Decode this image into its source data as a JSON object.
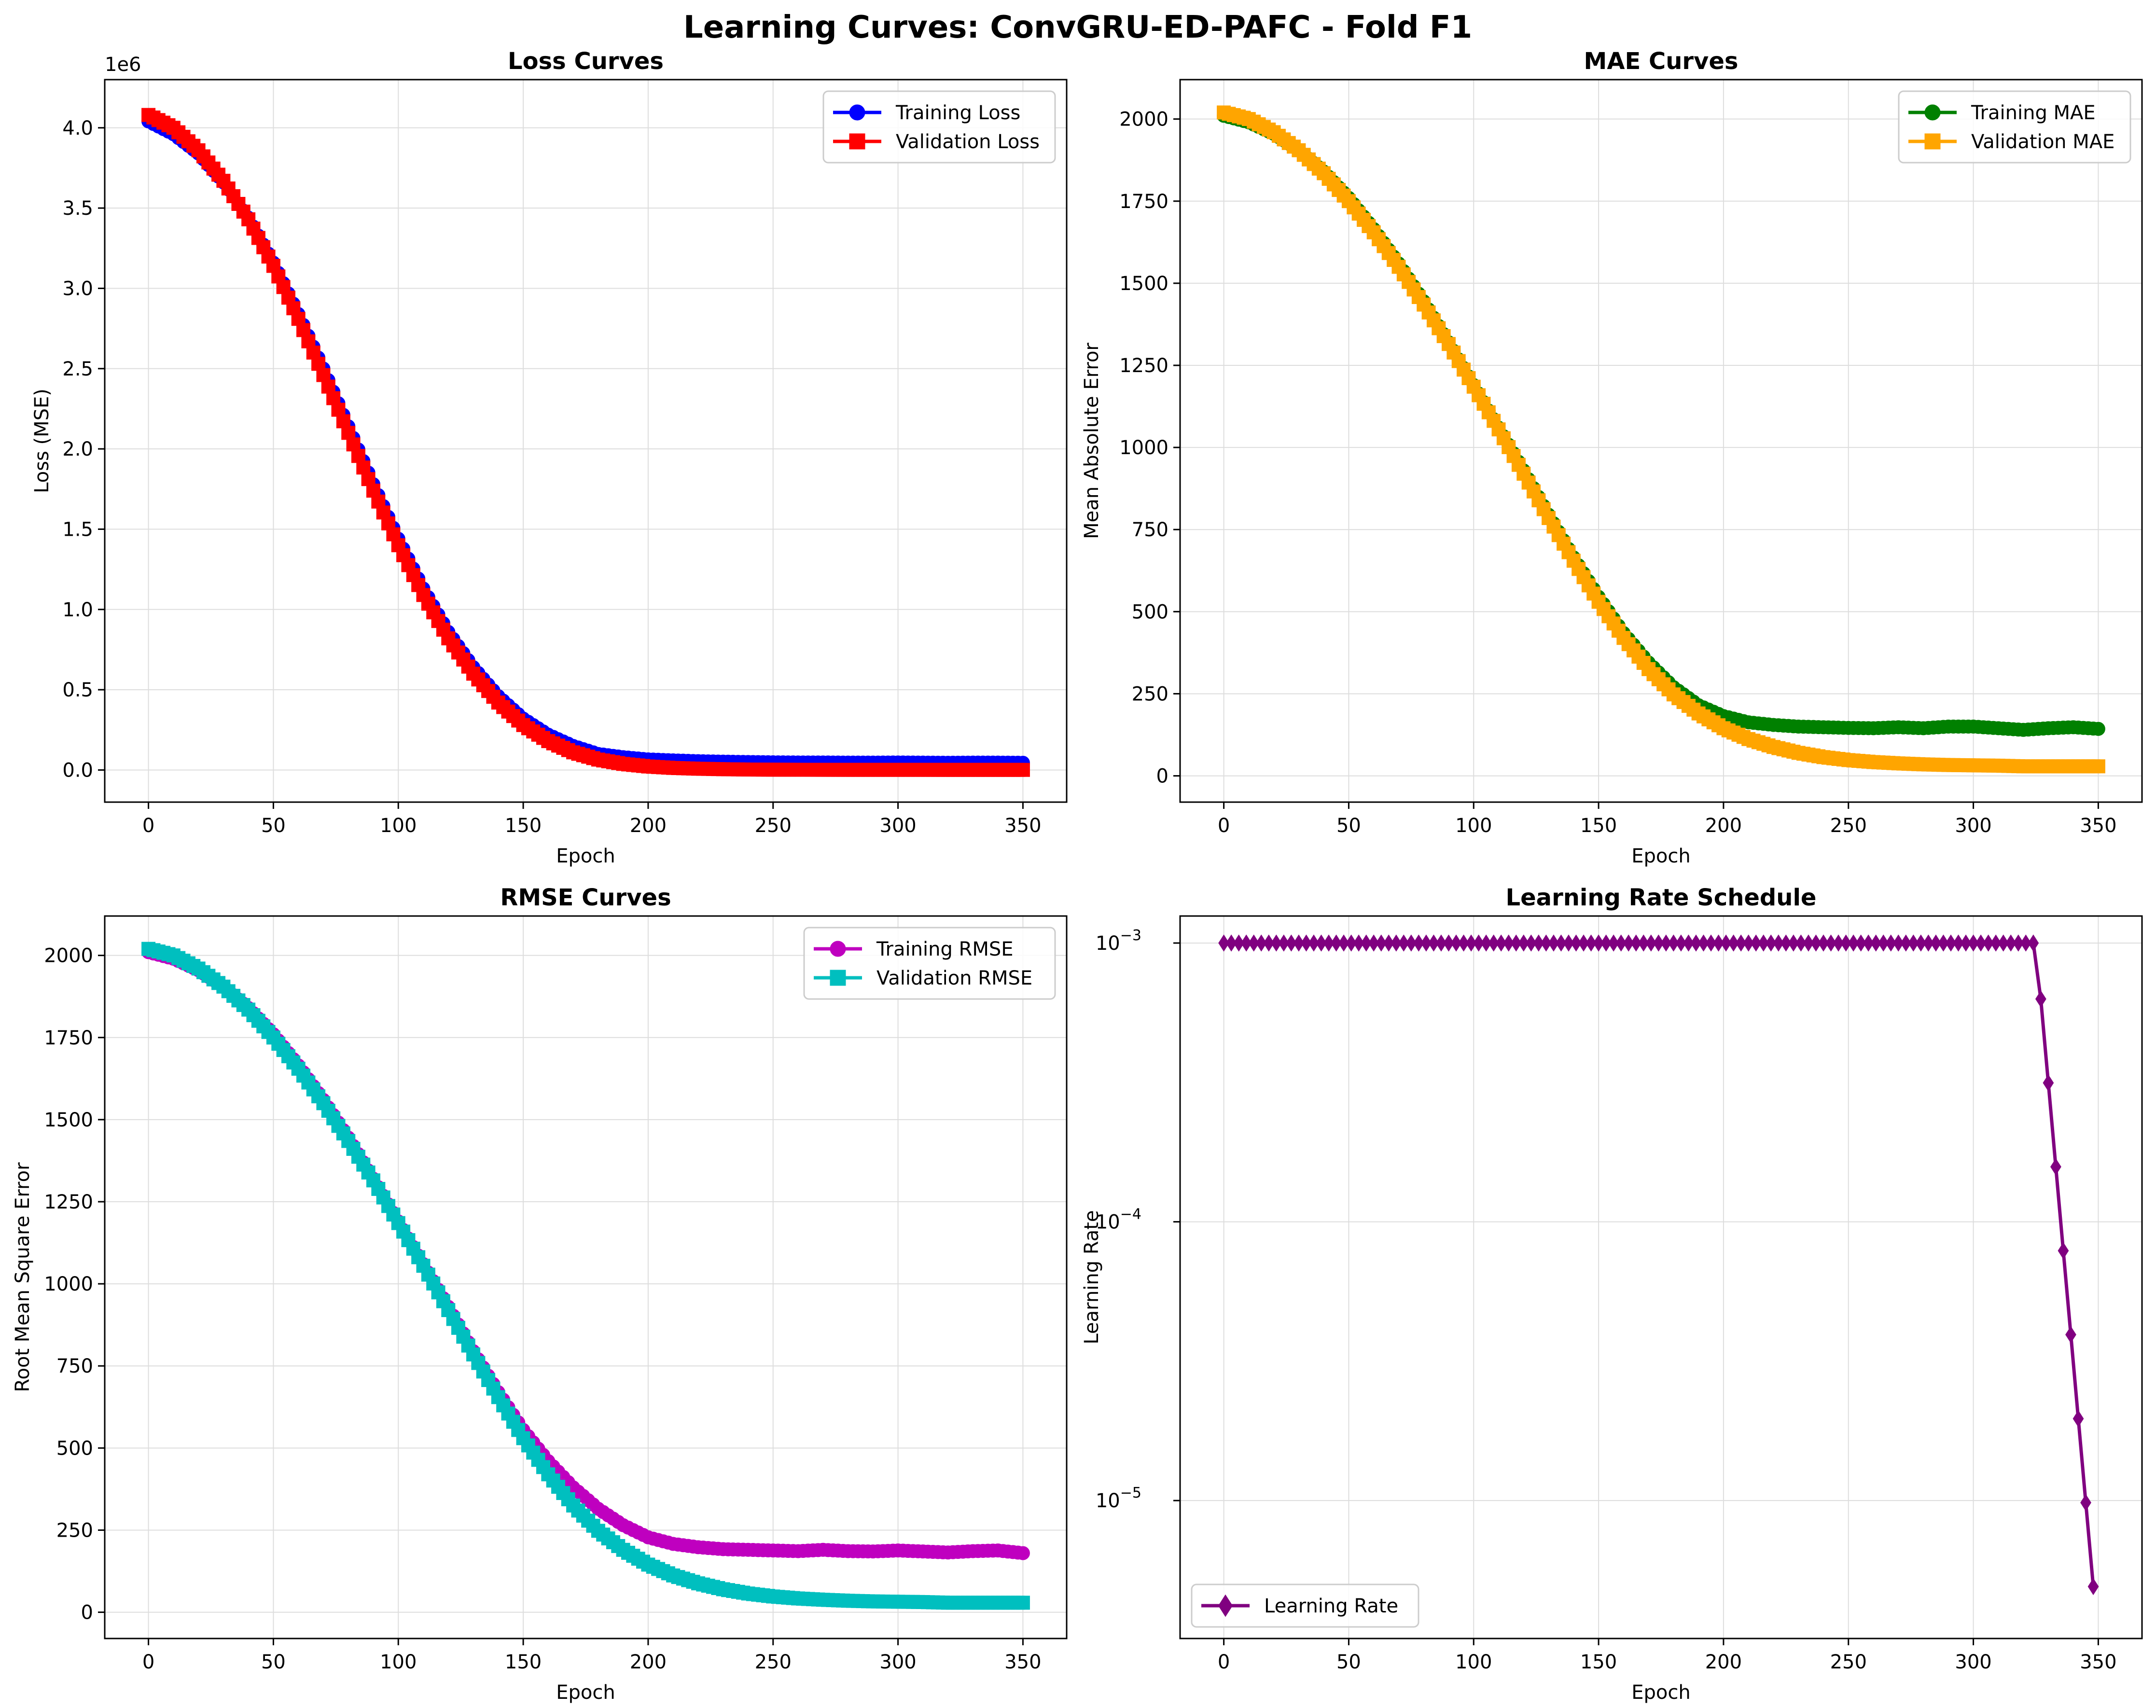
{
  "suptitle": "Learning Curves: ConvGRU-ED-PAFC - Fold F1",
  "chart_data": [
    {
      "id": "loss",
      "type": "line",
      "title": "Loss Curves",
      "xlabel": "Epoch",
      "ylabel": "Loss (MSE)",
      "offset_text": "1e6",
      "xlim": [
        -17.5,
        367.5
      ],
      "ylim": [
        -0.2,
        4.3
      ],
      "y_scale_factor": 1000000,
      "xticks": [
        0,
        50,
        100,
        150,
        200,
        250,
        300,
        350
      ],
      "yticks": [
        0.0,
        0.5,
        1.0,
        1.5,
        2.0,
        2.5,
        3.0,
        3.5,
        4.0
      ],
      "ytick_labels": [
        "0.0",
        "0.5",
        "1.0",
        "1.5",
        "2.0",
        "2.5",
        "3.0",
        "3.5",
        "4.0"
      ],
      "grid": true,
      "legend_position": "top-right",
      "series": [
        {
          "name": "Training Loss",
          "color": "#0000ff",
          "marker": "circle",
          "x": [
            0,
            10,
            20,
            30,
            40,
            50,
            60,
            70,
            80,
            90,
            100,
            110,
            120,
            130,
            140,
            150,
            160,
            170,
            180,
            190,
            200,
            210,
            220,
            230,
            240,
            250,
            260,
            270,
            280,
            290,
            300,
            310,
            320,
            330,
            340,
            350
          ],
          "y": [
            4.04,
            3.96,
            3.84,
            3.66,
            3.44,
            3.16,
            2.84,
            2.5,
            2.14,
            1.78,
            1.44,
            1.13,
            0.86,
            0.64,
            0.46,
            0.32,
            0.22,
            0.15,
            0.1,
            0.08,
            0.066,
            0.06,
            0.055,
            0.052,
            0.05,
            0.048,
            0.047,
            0.047,
            0.046,
            0.046,
            0.047,
            0.046,
            0.045,
            0.046,
            0.046,
            0.045
          ]
        },
        {
          "name": "Validation Loss",
          "color": "#ff0000",
          "marker": "square",
          "x": [
            0,
            10,
            20,
            30,
            40,
            50,
            60,
            70,
            80,
            90,
            100,
            110,
            120,
            130,
            140,
            150,
            160,
            170,
            180,
            190,
            200,
            210,
            220,
            230,
            240,
            250,
            260,
            270,
            280,
            290,
            300,
            310,
            320,
            330,
            340,
            350
          ],
          "y": [
            4.08,
            4.0,
            3.86,
            3.67,
            3.43,
            3.14,
            2.81,
            2.46,
            2.1,
            1.74,
            1.4,
            1.09,
            0.82,
            0.6,
            0.42,
            0.28,
            0.18,
            0.11,
            0.065,
            0.038,
            0.022,
            0.013,
            0.008,
            0.005,
            0.003,
            0.002,
            0.0015,
            0.0012,
            0.001,
            0.001,
            0.001,
            0.001,
            0.0008,
            0.0008,
            0.0008,
            0.0008
          ]
        }
      ]
    },
    {
      "id": "mae",
      "type": "line",
      "title": "MAE Curves",
      "xlabel": "Epoch",
      "ylabel": "Mean Absolute Error",
      "xlim": [
        -17.5,
        367.5
      ],
      "ylim": [
        -80,
        2120
      ],
      "xticks": [
        0,
        50,
        100,
        150,
        200,
        250,
        300,
        350
      ],
      "yticks": [
        0,
        250,
        500,
        750,
        1000,
        1250,
        1500,
        1750,
        2000
      ],
      "ytick_labels": [
        "0",
        "250",
        "500",
        "750",
        "1000",
        "1250",
        "1500",
        "1750",
        "2000"
      ],
      "grid": true,
      "legend_position": "top-right",
      "series": [
        {
          "name": "Training MAE",
          "color": "#008000",
          "marker": "circle",
          "x": [
            0,
            10,
            20,
            30,
            40,
            50,
            60,
            70,
            80,
            90,
            100,
            110,
            120,
            130,
            140,
            150,
            160,
            170,
            180,
            190,
            200,
            210,
            220,
            230,
            240,
            250,
            260,
            270,
            280,
            290,
            300,
            310,
            320,
            330,
            340,
            350
          ],
          "y": [
            2010,
            1990,
            1955,
            1905,
            1840,
            1760,
            1665,
            1560,
            1445,
            1320,
            1190,
            1060,
            930,
            795,
            665,
            545,
            435,
            345,
            270,
            215,
            182,
            163,
            155,
            150,
            148,
            146,
            145,
            148,
            145,
            150,
            150,
            145,
            140,
            145,
            148,
            143
          ]
        },
        {
          "name": "Validation MAE",
          "color": "#ffa500",
          "marker": "square",
          "x": [
            0,
            10,
            20,
            30,
            40,
            50,
            60,
            70,
            80,
            90,
            100,
            110,
            120,
            130,
            140,
            150,
            160,
            170,
            180,
            190,
            200,
            210,
            220,
            230,
            240,
            250,
            260,
            270,
            280,
            290,
            300,
            310,
            320,
            330,
            340,
            350
          ],
          "y": [
            2020,
            2000,
            1960,
            1905,
            1835,
            1750,
            1655,
            1550,
            1435,
            1315,
            1185,
            1055,
            920,
            785,
            655,
            530,
            420,
            325,
            248,
            190,
            145,
            112,
            88,
            70,
            57,
            48,
            42,
            38,
            35,
            33,
            32,
            31,
            29,
            29,
            29,
            29
          ]
        }
      ]
    },
    {
      "id": "rmse",
      "type": "line",
      "title": "RMSE Curves",
      "xlabel": "Epoch",
      "ylabel": "Root Mean Square Error",
      "xlim": [
        -17.5,
        367.5
      ],
      "ylim": [
        -80,
        2120
      ],
      "xticks": [
        0,
        50,
        100,
        150,
        200,
        250,
        300,
        350
      ],
      "yticks": [
        0,
        250,
        500,
        750,
        1000,
        1250,
        1500,
        1750,
        2000
      ],
      "ytick_labels": [
        "0",
        "250",
        "500",
        "750",
        "1000",
        "1250",
        "1500",
        "1750",
        "2000"
      ],
      "grid": true,
      "legend_position": "top-right",
      "series": [
        {
          "name": "Training RMSE",
          "color": "#bf00bf",
          "marker": "circle",
          "x": [
            0,
            10,
            20,
            30,
            40,
            50,
            60,
            70,
            80,
            90,
            100,
            110,
            120,
            130,
            140,
            150,
            160,
            170,
            180,
            190,
            200,
            210,
            220,
            230,
            240,
            250,
            260,
            270,
            280,
            290,
            300,
            310,
            320,
            330,
            340,
            350
          ],
          "y": [
            2010,
            1990,
            1955,
            1905,
            1840,
            1760,
            1665,
            1560,
            1445,
            1320,
            1190,
            1060,
            930,
            795,
            670,
            555,
            460,
            380,
            315,
            265,
            228,
            208,
            198,
            192,
            190,
            188,
            186,
            190,
            186,
            185,
            188,
            185,
            182,
            186,
            188,
            180
          ]
        },
        {
          "name": "Validation RMSE",
          "color": "#00bfbf",
          "marker": "square",
          "x": [
            0,
            10,
            20,
            30,
            40,
            50,
            60,
            70,
            80,
            90,
            100,
            110,
            120,
            130,
            140,
            150,
            160,
            170,
            180,
            190,
            200,
            210,
            220,
            230,
            240,
            250,
            260,
            270,
            280,
            290,
            300,
            310,
            320,
            330,
            340,
            350
          ],
          "y": [
            2020,
            2000,
            1960,
            1905,
            1835,
            1750,
            1655,
            1550,
            1435,
            1315,
            1185,
            1055,
            920,
            785,
            655,
            530,
            420,
            325,
            248,
            190,
            145,
            112,
            88,
            70,
            57,
            48,
            42,
            38,
            35,
            33,
            32,
            31,
            29,
            29,
            29,
            29
          ]
        }
      ]
    },
    {
      "id": "lr",
      "type": "line",
      "title": "Learning Rate Schedule",
      "xlabel": "Epoch",
      "ylabel": "Learning Rate",
      "yscale": "log",
      "xlim": [
        -17.5,
        367.5
      ],
      "ylim": [
        3.2e-06,
        0.00125
      ],
      "xticks": [
        0,
        50,
        100,
        150,
        200,
        250,
        300,
        350
      ],
      "yticks": [
        1e-05,
        0.0001,
        0.001
      ],
      "ytick_labels": [
        "10",
        "10",
        "10"
      ],
      "ytick_exponents": [
        "−5",
        "−4",
        "−3"
      ],
      "grid": true,
      "legend_position": "bottom-left",
      "series": [
        {
          "name": "Learning Rate",
          "color": "#800080",
          "marker": "diamond",
          "x": [
            0,
            25,
            50,
            75,
            100,
            125,
            150,
            175,
            200,
            225,
            250,
            275,
            300,
            325,
            328,
            331,
            334,
            337,
            340,
            343,
            346,
            349
          ],
          "y": [
            0.001,
            0.001,
            0.001,
            0.001,
            0.001,
            0.001,
            0.001,
            0.001,
            0.001,
            0.001,
            0.001,
            0.001,
            0.001,
            0.001,
            0.0005,
            0.00025,
            0.000125,
            6.25e-05,
            3.125e-05,
            1.56e-05,
            7.8e-06,
            3.9e-06
          ]
        }
      ]
    }
  ]
}
